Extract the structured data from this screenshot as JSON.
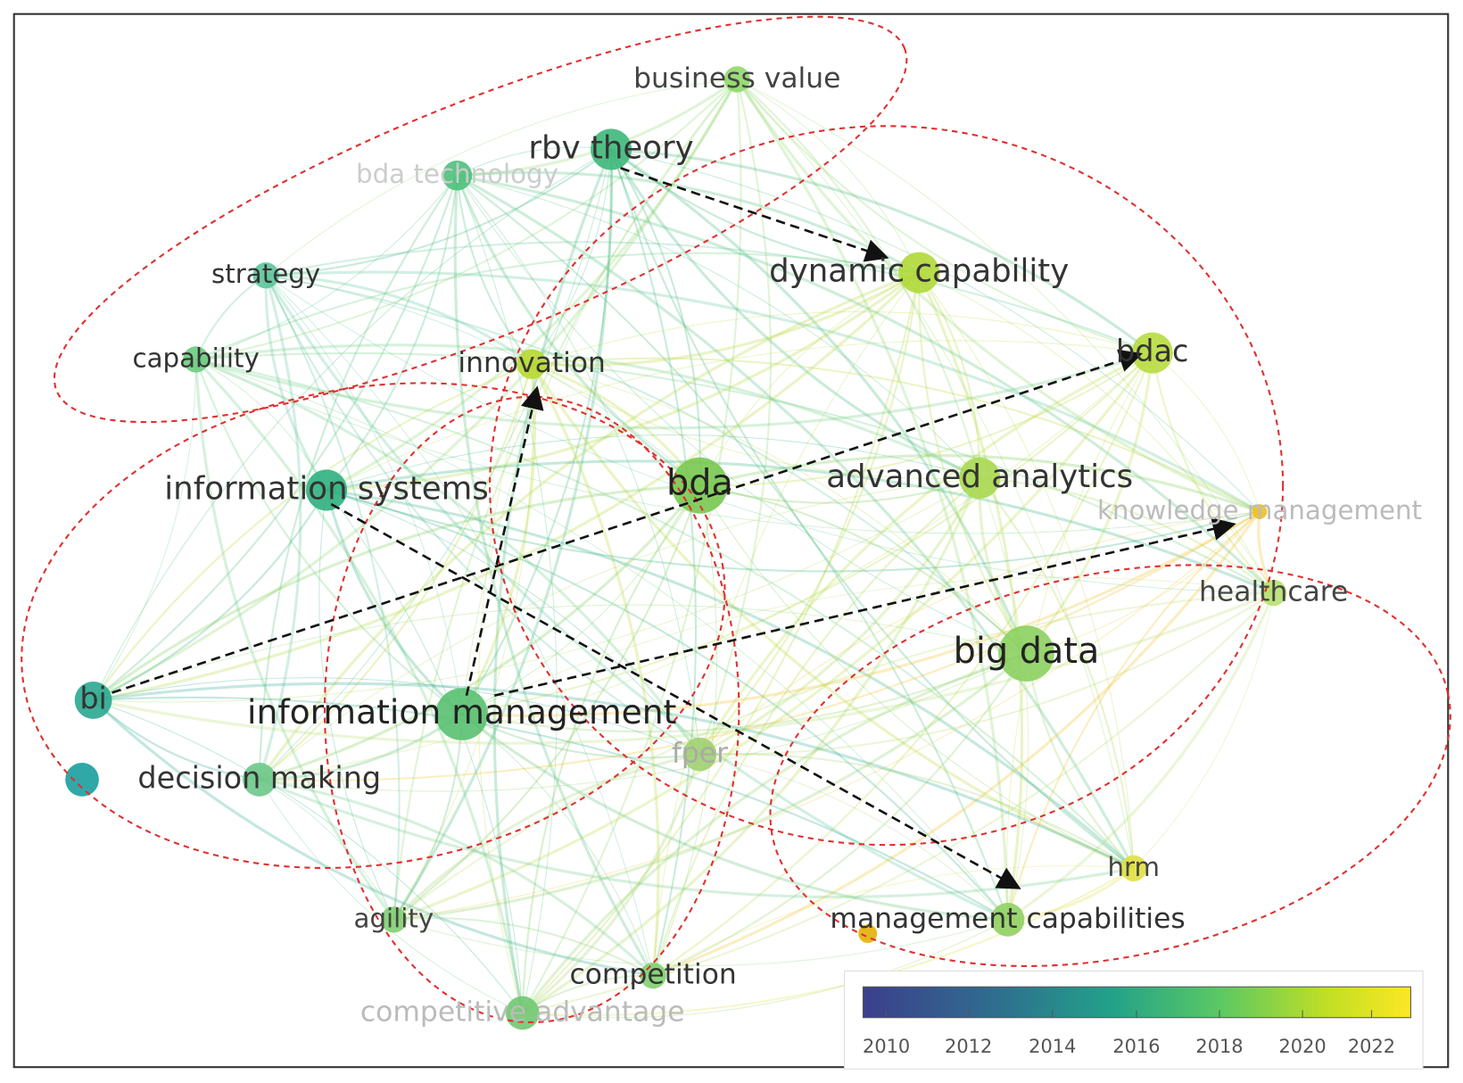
{
  "nodes": [
    {
      "label": "business value"
    },
    {
      "label": "rbv  theory"
    },
    {
      "label": "bda technology"
    },
    {
      "label": "strategy"
    },
    {
      "label": "capability"
    },
    {
      "label": "innovation"
    },
    {
      "label": "dynamic capability"
    },
    {
      "label": "bdac"
    },
    {
      "label": "information systems"
    },
    {
      "label": "bda"
    },
    {
      "label": "advanced analytics"
    },
    {
      "label": "knowledge management"
    },
    {
      "label": "healthcare"
    },
    {
      "label": "big data"
    },
    {
      "label": "bi"
    },
    {
      "label": "information management"
    },
    {
      "label": "fper"
    },
    {
      "label": "decision making"
    },
    {
      "label": "hrm"
    },
    {
      "label": "agility"
    },
    {
      "label": "management capabilities"
    },
    {
      "label": "competition"
    },
    {
      "label": "competitive advantage"
    }
  ],
  "colorbar": {
    "ticks": [
      "2010",
      "2012",
      "2014",
      "2016",
      "2018",
      "2020",
      "2022"
    ]
  }
}
